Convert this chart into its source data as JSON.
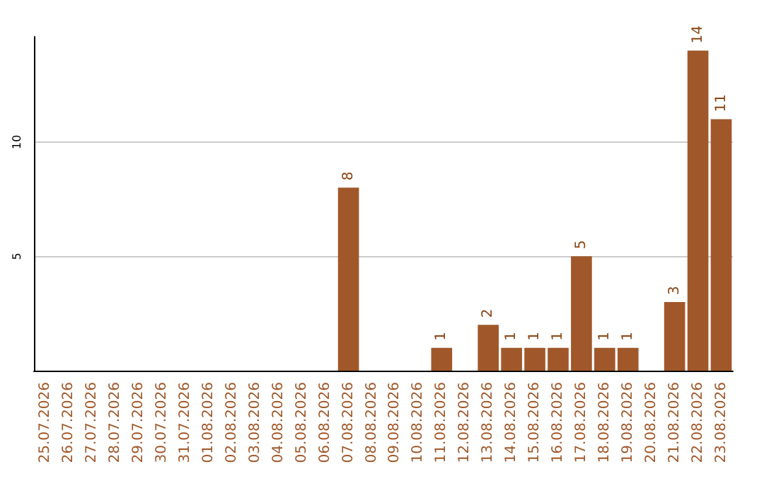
{
  "chart_data": {
    "type": "bar",
    "categories": [
      "25.07.2026",
      "26.07.2026",
      "27.07.2026",
      "28.07.2026",
      "29.07.2026",
      "30.07.2026",
      "31.07.2026",
      "01.08.2026",
      "02.08.2026",
      "03.08.2026",
      "04.08.2026",
      "05.08.2026",
      "06.08.2026",
      "07.08.2026",
      "08.08.2026",
      "09.08.2026",
      "10.08.2026",
      "11.08.2026",
      "12.08.2026",
      "13.08.2026",
      "14.08.2026",
      "15.08.2026",
      "16.08.2026",
      "17.08.2026",
      "18.08.2026",
      "19.08.2026",
      "20.08.2026",
      "21.08.2026",
      "22.08.2026",
      "23.08.2026"
    ],
    "values": [
      0,
      0,
      0,
      0,
      0,
      0,
      0,
      0,
      0,
      0,
      0,
      0,
      0,
      8,
      0,
      0,
      0,
      1,
      0,
      2,
      1,
      1,
      1,
      5,
      1,
      1,
      0,
      3,
      14,
      11
    ],
    "value_labels": [
      null,
      null,
      null,
      null,
      null,
      null,
      null,
      null,
      null,
      null,
      null,
      null,
      null,
      "8",
      null,
      null,
      null,
      "1",
      null,
      "2",
      "1",
      "1",
      "1",
      "5",
      "1",
      "1",
      null,
      "3",
      "14",
      "11"
    ],
    "color": "#a0582a",
    "ylim": [
      0,
      14.6
    ],
    "yticks": [
      5,
      10
    ],
    "grid": "y"
  }
}
